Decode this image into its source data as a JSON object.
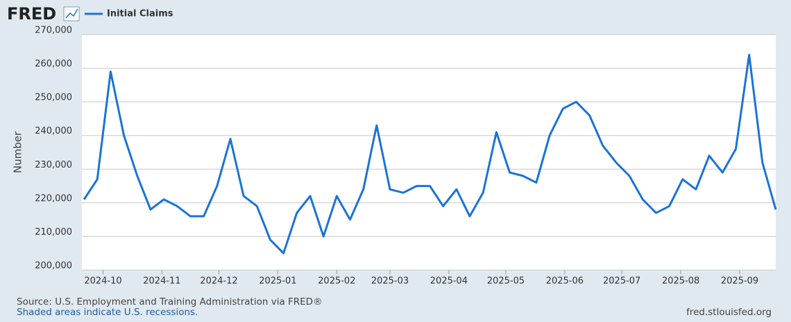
{
  "brand": "FRED",
  "chart_data": {
    "type": "line",
    "series": [
      {
        "name": "Initial Claims",
        "color": "#1a73d6",
        "values": [
          221000,
          227000,
          259000,
          240000,
          228000,
          218000,
          221000,
          219000,
          216000,
          216000,
          225000,
          239000,
          222000,
          219000,
          209000,
          205000,
          217000,
          222000,
          210000,
          222000,
          215000,
          224000,
          243000,
          224000,
          223000,
          225000,
          225000,
          219000,
          224000,
          216000,
          223000,
          241000,
          229000,
          228000,
          226000,
          240000,
          248000,
          250000,
          246000,
          237000,
          232000,
          228000,
          221000,
          217000,
          219000,
          227000,
          224000,
          234000,
          229000,
          236000,
          264000,
          232000,
          218000
        ]
      }
    ],
    "y_axis_label": "Number",
    "ylim": [
      200000,
      270000
    ],
    "yticks": [
      {
        "value": 200000,
        "label": "200,000"
      },
      {
        "value": 210000,
        "label": "210,000"
      },
      {
        "value": 220000,
        "label": "220,000"
      },
      {
        "value": 230000,
        "label": "230,000"
      },
      {
        "value": 240000,
        "label": "240,000"
      },
      {
        "value": 250000,
        "label": "250,000"
      },
      {
        "value": 260000,
        "label": "260,000"
      },
      {
        "value": 270000,
        "label": "270,000"
      }
    ],
    "xlim": [
      -0.16,
      52
    ],
    "xticks": [
      {
        "value": 1.43,
        "label": "2024-10"
      },
      {
        "value": 5.86,
        "label": "2024-11"
      },
      {
        "value": 10.14,
        "label": "2024-12"
      },
      {
        "value": 14.57,
        "label": "2025-01"
      },
      {
        "value": 19,
        "label": "2025-02"
      },
      {
        "value": 23,
        "label": "2025-03"
      },
      {
        "value": 27.43,
        "label": "2025-04"
      },
      {
        "value": 31.71,
        "label": "2025-05"
      },
      {
        "value": 36.14,
        "label": "2025-06"
      },
      {
        "value": 40.43,
        "label": "2025-07"
      },
      {
        "value": 44.86,
        "label": "2025-08"
      },
      {
        "value": 49.29,
        "label": "2025-09"
      }
    ],
    "grid": true
  },
  "footer": {
    "source": "Source: U.S. Employment and Training Administration via FRED®",
    "note": "Shaded areas indicate U.S. recessions.",
    "site": "fred.stlouisfed.org"
  }
}
